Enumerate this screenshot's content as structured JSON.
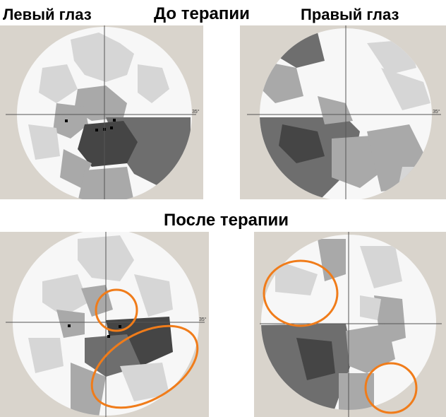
{
  "labels": {
    "left_eye": "Левый глаз",
    "before_therapy": "До терапии",
    "right_eye": "Правый глаз",
    "after_therapy": "После терапии"
  },
  "axis_mark": "35°",
  "colors": {
    "background": "#d9d4cc",
    "field": "#f7f7f7",
    "light": "#d6d6d6",
    "mid": "#a9a9a9",
    "dark": "#6e6e6e",
    "darker": "#454545",
    "highlight_ring": "#f07c1a"
  }
}
